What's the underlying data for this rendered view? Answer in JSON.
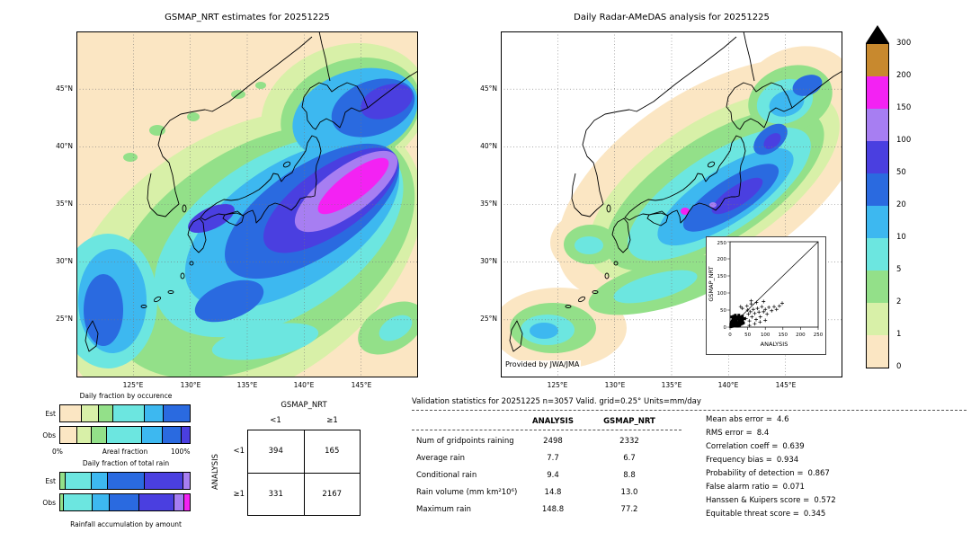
{
  "left_map": {
    "title": "GSMAP_NRT estimates for 20251225"
  },
  "right_map": {
    "title": "Daily Radar-AMeDAS analysis for 20251225",
    "credit": "Provided by JWA/JMA"
  },
  "axes": {
    "lat": [
      "45°N",
      "40°N",
      "35°N",
      "30°N",
      "25°N"
    ],
    "lon": [
      "125°E",
      "130°E",
      "135°E",
      "140°E",
      "145°E"
    ]
  },
  "colorbar": {
    "labels": [
      "300",
      "200",
      "150",
      "100",
      "50",
      "20",
      "10",
      "5",
      "2",
      "1",
      "0"
    ],
    "colors": [
      "#c8892e",
      "#f322f3",
      "#a77ef2",
      "#4a3fe0",
      "#2a6ae0",
      "#3db8f0",
      "#6ce6e0",
      "#93e089",
      "#d8f0a8",
      "#fbe6c3"
    ]
  },
  "fractions": {
    "occurrence_title": "Daily fraction by occurence",
    "total_title": "Daily fraction of total rain",
    "est": "Est",
    "obs": "Obs",
    "axis_left": "0%",
    "axis_label": "Areal fraction",
    "axis_right": "100%",
    "caption": "Rainfall accumulation by amount"
  },
  "contingency": {
    "title": "GSMAP_NRT",
    "row_axis": "ANALYSIS",
    "col1": "<1",
    "col2": "≥1",
    "r1": "<1",
    "r2": "≥1",
    "v11": "394",
    "v12": "165",
    "v21": "331",
    "v22": "2167"
  },
  "stats": {
    "header": "Validation statistics for 20251225  n=3057 Valid. grid=0.25° Units=mm/day",
    "col1": "ANALYSIS",
    "col2": "GSMAP_NRT",
    "rows": [
      {
        "label": "Num of gridpoints raining",
        "a": "2498",
        "g": "2332"
      },
      {
        "label": "Average rain",
        "a": "7.7",
        "g": "6.7"
      },
      {
        "label": "Conditional rain",
        "a": "9.4",
        "g": "8.8"
      },
      {
        "label": "Rain volume (mm km²10⁶)",
        "a": "14.8",
        "g": "13.0"
      },
      {
        "label": "Maximum rain",
        "a": "148.8",
        "g": "77.2"
      }
    ],
    "metrics": [
      {
        "label": "Mean abs error =",
        "value": "4.6"
      },
      {
        "label": "RMS error =",
        "value": "8.4"
      },
      {
        "label": "Correlation coeff =",
        "value": "0.639"
      },
      {
        "label": "Frequency bias =",
        "value": "0.934"
      },
      {
        "label": "Probability of detection =",
        "value": "0.867"
      },
      {
        "label": "False alarm ratio =",
        "value": "0.071"
      },
      {
        "label": "Hanssen & Kuipers score =",
        "value": "0.572"
      },
      {
        "label": "Equitable threat score =",
        "value": "0.345"
      }
    ]
  },
  "inset": {
    "xlabel": "ANALYSIS",
    "ylabel": "GSMAP_NRT",
    "ticks": [
      "0",
      "50",
      "100",
      "150",
      "200",
      "250"
    ]
  },
  "chart_data": [
    {
      "type": "heatmap",
      "title": "GSMAP_NRT estimates for 20251225",
      "x_ticks": [
        "125°E",
        "130°E",
        "135°E",
        "140°E",
        "145°E"
      ],
      "y_ticks": [
        "45°N",
        "40°N",
        "35°N",
        "30°N",
        "25°N"
      ],
      "units": "mm/day",
      "levels": [
        0,
        1,
        2,
        5,
        10,
        20,
        50,
        100,
        150,
        200,
        300
      ],
      "colors_ref": "colorbar.colors",
      "description": "Satellite daily rain estimate over Japan; broad SW-NE rain band, blue core (50-100) along Pacific side of Honshu with purple/magenta maximum (100-200 mm/day) southeast of Honshu; cyan/blue patches near Korea strait, Taiwan and East China Sea"
    },
    {
      "type": "heatmap",
      "title": "Daily Radar-AMeDAS analysis for 20251225",
      "x_ticks": [
        "125°E",
        "130°E",
        "135°E",
        "140°E",
        "145°E"
      ],
      "y_ticks": [
        "45°N",
        "40°N",
        "35°N",
        "30°N",
        "25°N"
      ],
      "units": "mm/day",
      "levels": [
        0,
        1,
        2,
        5,
        10,
        20,
        50,
        100,
        150,
        200,
        300
      ],
      "colors_ref": "colorbar.colors",
      "annotation": "Provided by JWA/JMA",
      "description": "Radar-gauge analysis limited to radar coverage around the Japanese archipelago; green/cyan band with blue core (20-100 mm/day) along Pacific coast of Honshu, small intense cells near Kii peninsula, patches near Hokkaido and Okinawa"
    },
    {
      "type": "scatter",
      "xlabel": "ANALYSIS",
      "ylabel": "GSMAP_NRT",
      "xlim": [
        0,
        250
      ],
      "ylim": [
        0,
        250
      ],
      "ticks": [
        0,
        50,
        100,
        150,
        200,
        250
      ],
      "diagonal": true,
      "cluster": [
        [
          2,
          1
        ],
        [
          3,
          4
        ],
        [
          5,
          2
        ],
        [
          6,
          7
        ],
        [
          8,
          3
        ],
        [
          4,
          9
        ],
        [
          10,
          5
        ],
        [
          12,
          8
        ],
        [
          7,
          12
        ],
        [
          9,
          15
        ],
        [
          14,
          4
        ],
        [
          15,
          10
        ],
        [
          11,
          18
        ],
        [
          16,
          14
        ],
        [
          18,
          6
        ],
        [
          20,
          10
        ],
        [
          13,
          22
        ],
        [
          22,
          14
        ],
        [
          24,
          8
        ],
        [
          17,
          20
        ],
        [
          25,
          18
        ],
        [
          28,
          12
        ],
        [
          21,
          25
        ],
        [
          30,
          8
        ],
        [
          26,
          22
        ],
        [
          32,
          15
        ],
        [
          19,
          3
        ],
        [
          23,
          3
        ],
        [
          29,
          20
        ],
        [
          34,
          10
        ],
        [
          3,
          14
        ],
        [
          6,
          18
        ],
        [
          2,
          8
        ],
        [
          35,
          22
        ],
        [
          27,
          5
        ],
        [
          31,
          26
        ],
        [
          12,
          28
        ],
        [
          8,
          24
        ],
        [
          36,
          18
        ],
        [
          38,
          12
        ],
        [
          5,
          30
        ],
        [
          10,
          32
        ],
        [
          16,
          28
        ],
        [
          22,
          30
        ],
        [
          28,
          30
        ],
        [
          33,
          28
        ],
        [
          15,
          35
        ],
        [
          25,
          35
        ],
        [
          35,
          32
        ],
        [
          40,
          25
        ]
      ],
      "points": [
        [
          45,
          25
        ],
        [
          52,
          38
        ],
        [
          55,
          18
        ],
        [
          58,
          45
        ],
        [
          62,
          30
        ],
        [
          66,
          52
        ],
        [
          70,
          40
        ],
        [
          74,
          22
        ],
        [
          78,
          55
        ],
        [
          82,
          44
        ],
        [
          86,
          30
        ],
        [
          90,
          60
        ],
        [
          95,
          45
        ],
        [
          100,
          52
        ],
        [
          105,
          38
        ],
        [
          110,
          58
        ],
        [
          118,
          48
        ],
        [
          125,
          60
        ],
        [
          132,
          52
        ],
        [
          140,
          62
        ],
        [
          148,
          70
        ],
        [
          48,
          62
        ],
        [
          60,
          68
        ],
        [
          75,
          72
        ],
        [
          95,
          75
        ],
        [
          35,
          55
        ],
        [
          30,
          60
        ],
        [
          55,
          5
        ],
        [
          70,
          10
        ],
        [
          85,
          15
        ],
        [
          100,
          20
        ],
        [
          60,
          77
        ],
        [
          50,
          50
        ]
      ]
    },
    {
      "type": "table",
      "title": "Contingency table, threshold 1 mm/day",
      "columns": [
        "GSMAP_NRT <1",
        "GSMAP_NRT ≥1"
      ],
      "rows": [
        "ANALYSIS <1",
        "ANALYSIS ≥1"
      ],
      "values": [
        [
          394,
          165
        ],
        [
          331,
          2167
        ]
      ]
    },
    {
      "type": "table",
      "title": "Validation statistics for 20251225  n=3057 Valid. grid=0.25° Units=mm/day",
      "columns": [
        "ANALYSIS",
        "GSMAP_NRT"
      ],
      "rows": [
        [
          "Num of gridpoints raining",
          2498,
          2332
        ],
        [
          "Average rain",
          7.7,
          6.7
        ],
        [
          "Conditional rain",
          9.4,
          8.8
        ],
        [
          "Rain volume (mm km²10⁶)",
          14.8,
          13.0
        ],
        [
          "Maximum rain",
          148.8,
          77.2
        ]
      ],
      "scores": {
        "Mean abs error": 4.6,
        "RMS error": 8.4,
        "Correlation coeff": 0.639,
        "Frequency bias": 0.934,
        "Probability of detection": 0.867,
        "False alarm ratio": 0.071,
        "Hanssen & Kuipers score": 0.572,
        "Equitable threat score": 0.345
      }
    },
    {
      "type": "bar",
      "title": "Daily fraction by occurence",
      "categories": [
        "Est",
        "Obs"
      ],
      "xlabel": "Areal fraction",
      "xlim": [
        "0%",
        "100%"
      ],
      "bars": {
        "est": [
          {
            "c": "#fbe6c3",
            "p": 17
          },
          {
            "c": "#d8f0a8",
            "p": 13
          },
          {
            "c": "#93e089",
            "p": 11
          },
          {
            "c": "#6ce6e0",
            "p": 24
          },
          {
            "c": "#3db8f0",
            "p": 15
          },
          {
            "c": "#2a6ae0",
            "p": 20
          }
        ],
        "obs": [
          {
            "c": "#fbe6c3",
            "p": 13
          },
          {
            "c": "#d8f0a8",
            "p": 11
          },
          {
            "c": "#93e089",
            "p": 12
          },
          {
            "c": "#6ce6e0",
            "p": 27
          },
          {
            "c": "#3db8f0",
            "p": 16
          },
          {
            "c": "#2a6ae0",
            "p": 15
          },
          {
            "c": "#4a3fe0",
            "p": 6
          }
        ]
      }
    },
    {
      "type": "bar",
      "title": "Daily fraction of total rain",
      "caption": "Rainfall accumulation by amount",
      "categories": [
        "Est",
        "Obs"
      ],
      "bars": {
        "est": [
          {
            "c": "#93e089",
            "p": 4
          },
          {
            "c": "#6ce6e0",
            "p": 20
          },
          {
            "c": "#3db8f0",
            "p": 13
          },
          {
            "c": "#2a6ae0",
            "p": 28
          },
          {
            "c": "#4a3fe0",
            "p": 30
          },
          {
            "c": "#a77ef2",
            "p": 5
          }
        ],
        "obs": [
          {
            "c": "#93e089",
            "p": 3
          },
          {
            "c": "#6ce6e0",
            "p": 22
          },
          {
            "c": "#3db8f0",
            "p": 13
          },
          {
            "c": "#2a6ae0",
            "p": 23
          },
          {
            "c": "#4a3fe0",
            "p": 27
          },
          {
            "c": "#a77ef2",
            "p": 8
          },
          {
            "c": "#f322f3",
            "p": 4
          }
        ]
      }
    }
  ]
}
